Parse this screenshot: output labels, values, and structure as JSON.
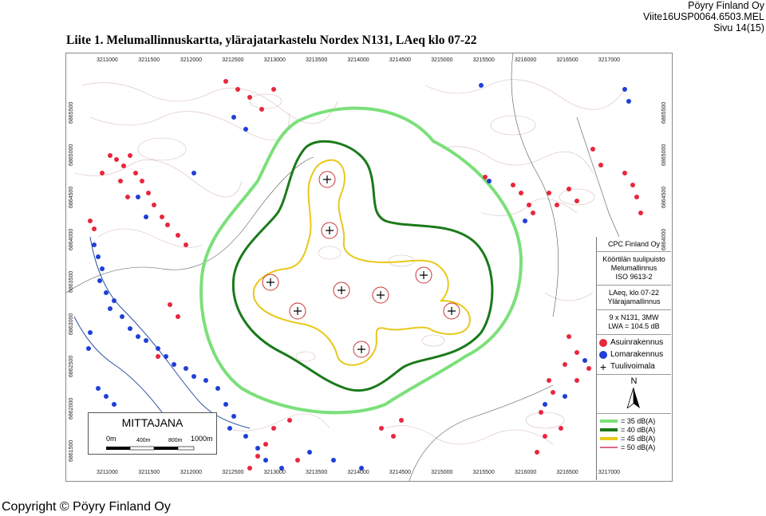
{
  "header": {
    "company": "Pöyry Finland Oy",
    "document_id": "Viite16USP0064.6503.MEL",
    "page": "Sivu 14(15)"
  },
  "title": "Liite 1. Melumallinnuskartta, ylärajatarkastelu Nordex N131, LAeq klo 07-22",
  "copyright": "Copyright © Pöyry Finland Oy",
  "map": {
    "x_ticks": [
      "3211000",
      "3211500",
      "3212000",
      "3212500",
      "3213000",
      "3213500",
      "3214000",
      "3214500",
      "3215000",
      "3215500",
      "3216000",
      "3216500",
      "3217000"
    ],
    "y_ticks": [
      "6865500",
      "6865000",
      "6864500",
      "6864000",
      "6863500",
      "6863000",
      "6862500",
      "6862000",
      "6861500"
    ],
    "bottom_ticks": [
      "3211000",
      "3211500",
      "3212000",
      "3212500",
      "3213000",
      "3213500",
      "3214000",
      "3214500",
      "3215000",
      "3215500",
      "3216000",
      "3216500",
      "3217000"
    ],
    "right_ticks": [
      "6865500",
      "6865000",
      "6864500",
      "6864000"
    ]
  },
  "legend": {
    "company": "CPC Finland Oy",
    "project": "Köörtilän tuulipuisto",
    "model": "Melumallinnus",
    "standard": "ISO 9613-2",
    "metric": "LAeq, klo 07-22",
    "variant": "Ylärajamallinnus",
    "turbines": "9 x N131, 3MW",
    "lwa": "LWA = 104.5 dB",
    "symbols": [
      {
        "label": "Asuinrakennus",
        "color": "#e8273c"
      },
      {
        "label": "Lomarakennus",
        "color": "#1f3fd6"
      },
      {
        "label": "Tuulivoimala",
        "color": "#000000"
      }
    ],
    "north": "N",
    "contours": [
      {
        "label": "= 35 dB(A)",
        "color": "#7be07a"
      },
      {
        "label": "= 40 dB(A)",
        "color": "#1a7a1a"
      },
      {
        "label": "= 45 dB(A)",
        "color": "#e8c81a"
      },
      {
        "label": "= 50 dB(A)",
        "color": "#d96a8a"
      }
    ]
  },
  "scale": {
    "title": "MITTAJANA",
    "labels": [
      "0m",
      "400m",
      "800m",
      "1000m"
    ]
  }
}
